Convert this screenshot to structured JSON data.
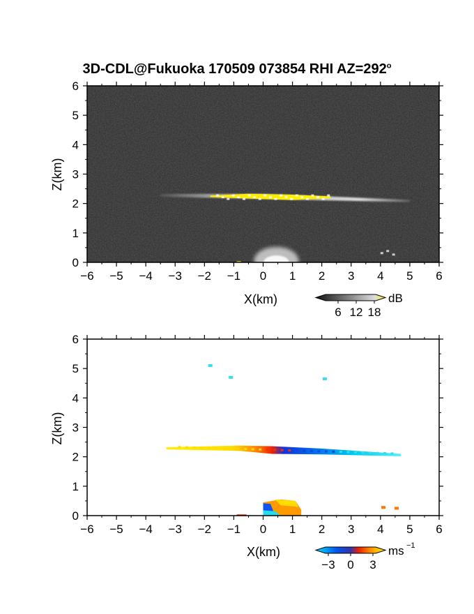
{
  "title": "3D-CDL@Fukuoka 170509 073854 RHI AZ=292",
  "title_suffix": "o",
  "chart_data": [
    {
      "type": "heatmap",
      "variable": "backscatter intensity",
      "xlabel": "X(km)",
      "ylabel": "Z(km)",
      "xlim": [
        -6,
        6
      ],
      "ylim": [
        0,
        6
      ],
      "x_ticks": [
        "-6",
        "-5",
        "-4",
        "-3",
        "-2",
        "-1",
        "0",
        "1",
        "2",
        "3",
        "4",
        "5",
        "6"
      ],
      "y_ticks": [
        "0",
        "1",
        "2",
        "3",
        "4",
        "5",
        "6"
      ],
      "background": "noise, dark gray",
      "features": [
        {
          "x_start": -3.5,
          "x_end": 5.0,
          "z_center": 2.25,
          "z_start": 2.28,
          "z_end": 2.1,
          "color": "gray/white"
        },
        {
          "x_start": -1.8,
          "x_end": 2.3,
          "z_center": 2.25,
          "color": "#ffee00"
        },
        {
          "x_start": -0.3,
          "x_end": 1.0,
          "z_center": 0.1,
          "color": "white glow"
        }
      ],
      "colorbar": {
        "unit": "dB",
        "ticks": [
          "6",
          "12",
          "18"
        ],
        "colormap": "grayscale-to-yellow"
      }
    },
    {
      "type": "heatmap",
      "variable": "Doppler velocity",
      "xlabel": "X(km)",
      "ylabel": "Z(km)",
      "xlim": [
        -6,
        6
      ],
      "ylim": [
        0,
        6
      ],
      "x_ticks": [
        "-6",
        "-5",
        "-4",
        "-3",
        "-2",
        "-1",
        "0",
        "1",
        "2",
        "3",
        "4",
        "5",
        "6"
      ],
      "y_ticks": [
        "0",
        "1",
        "2",
        "3",
        "4",
        "5",
        "6"
      ],
      "features": [
        {
          "x_start": -3.3,
          "x_end": 4.7,
          "z_start": 2.3,
          "z_end": 2.05,
          "colors": "yellow → orange → red → blue → cyan"
        },
        {
          "x_start": 0.0,
          "x_end": 1.3,
          "z_start": 0.0,
          "z_end": 0.55,
          "colors": "orange/yellow with blue and cyan near 0"
        },
        {
          "x": -1.8,
          "z": 5.1,
          "color": "cyan"
        },
        {
          "x": -1.1,
          "z": 4.7,
          "color": "cyan"
        },
        {
          "x": 2.1,
          "z": 4.65,
          "color": "cyan"
        },
        {
          "x": 4.1,
          "z": 0.28,
          "color": "orange"
        },
        {
          "x": 4.55,
          "z": 0.25,
          "color": "orange"
        }
      ],
      "colorbar": {
        "unit": "ms",
        "unit_exp": "-1",
        "ticks": [
          "-3",
          "0",
          "3"
        ],
        "colormap": "cyan-blue-red-yellow"
      }
    }
  ]
}
